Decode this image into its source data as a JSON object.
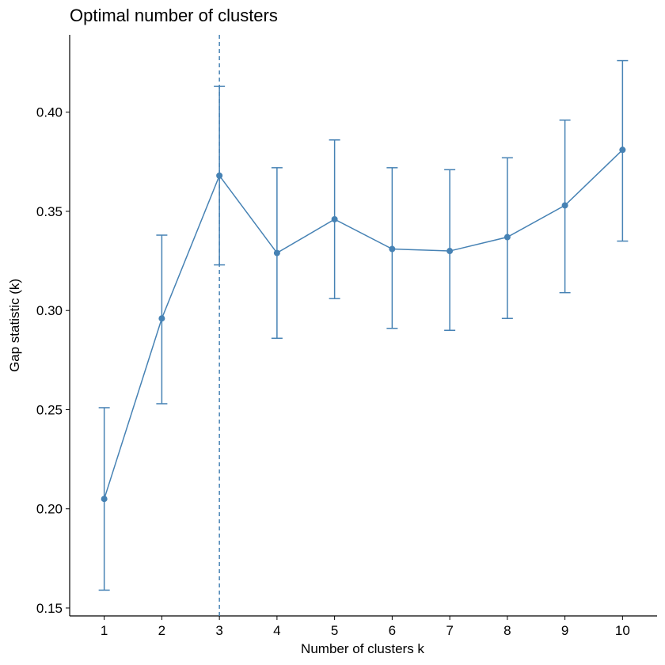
{
  "chart_data": {
    "type": "line",
    "title": "Optimal number of clusters",
    "xlabel": "Number of clusters k",
    "ylabel": "Gap statistic (k)",
    "x": [
      1,
      2,
      3,
      4,
      5,
      6,
      7,
      8,
      9,
      10
    ],
    "x_tick_labels": [
      "1",
      "2",
      "3",
      "4",
      "5",
      "6",
      "7",
      "8",
      "9",
      "10"
    ],
    "y_ticks": [
      0.15,
      0.2,
      0.25,
      0.3,
      0.35,
      0.4
    ],
    "y_tick_labels": [
      "0.15",
      "0.20",
      "0.25",
      "0.30",
      "0.35",
      "0.40"
    ],
    "xlim": [
      0.4,
      10.6
    ],
    "ylim": [
      0.146,
      0.439
    ],
    "grid": false,
    "optimal_k": 3,
    "series": [
      {
        "values": [
          0.205,
          0.296,
          0.368,
          0.329,
          0.346,
          0.331,
          0.33,
          0.337,
          0.353,
          0.381
        ],
        "error_low": [
          0.159,
          0.253,
          0.323,
          0.286,
          0.306,
          0.291,
          0.29,
          0.296,
          0.309,
          0.335
        ],
        "error_high": [
          0.251,
          0.338,
          0.413,
          0.372,
          0.386,
          0.372,
          0.371,
          0.377,
          0.396,
          0.426
        ],
        "color": "#4682B4"
      }
    ]
  }
}
